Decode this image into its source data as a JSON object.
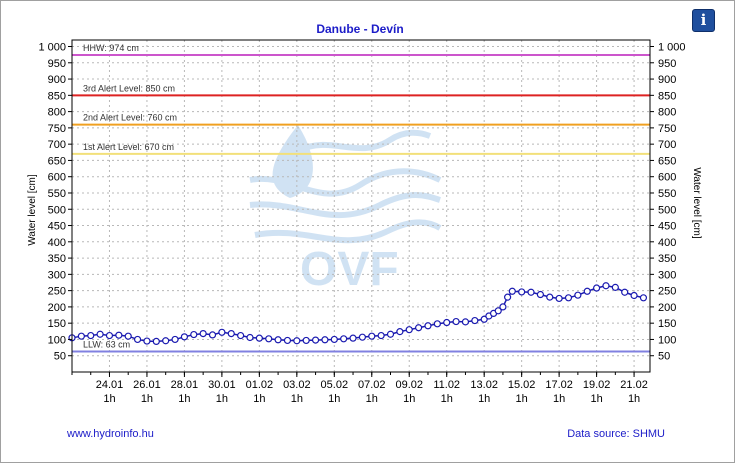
{
  "ui": {
    "info_icon": "info-icon",
    "info_glyph": "i",
    "footer_left": "www.hydroinfo.hu",
    "footer_right": "Data source: SHMU"
  },
  "chart_data": {
    "type": "line",
    "title": "Danube - Devín",
    "ylabel_left": "Water level [cm]",
    "ylabel_right": "Water level [cm]",
    "ylim": [
      0,
      1020
    ],
    "yticks": [
      50,
      100,
      150,
      200,
      250,
      300,
      350,
      400,
      450,
      500,
      550,
      600,
      650,
      700,
      750,
      800,
      850,
      900,
      950,
      1000
    ],
    "ytick_labels": [
      "50",
      "100",
      "150",
      "200",
      "250",
      "300",
      "350",
      "400",
      "450",
      "500",
      "550",
      "600",
      "650",
      "700",
      "750",
      "800",
      "850",
      "900",
      "950",
      "1 000"
    ],
    "xlim": [
      22.0,
      21.0
    ],
    "x_ticks": [
      {
        "date": "24.01",
        "hour": "1h"
      },
      {
        "date": "26.01",
        "hour": "1h"
      },
      {
        "date": "28.01",
        "hour": "1h"
      },
      {
        "date": "30.01",
        "hour": "1h"
      },
      {
        "date": "01.02",
        "hour": "1h"
      },
      {
        "date": "03.02",
        "hour": "1h"
      },
      {
        "date": "05.02",
        "hour": "1h"
      },
      {
        "date": "07.02",
        "hour": "1h"
      },
      {
        "date": "09.02",
        "hour": "1h"
      },
      {
        "date": "11.02",
        "hour": "1h"
      },
      {
        "date": "13.02",
        "hour": "1h"
      },
      {
        "date": "15.02",
        "hour": "1h"
      },
      {
        "date": "17.02",
        "hour": "1h"
      },
      {
        "date": "19.02",
        "hour": "1h"
      },
      {
        "date": "21.02",
        "hour": "1h"
      }
    ],
    "thresholds": [
      {
        "label": "HHW: 974 cm",
        "value": 974,
        "color": "#cc55cc"
      },
      {
        "label": "3rd Alert Level: 850 cm",
        "value": 850,
        "color": "#dd2222"
      },
      {
        "label": "2nd Alert Level: 760 cm",
        "value": 760,
        "color": "#f0a020"
      },
      {
        "label": "1st Alert Level: 670 cm",
        "value": 670,
        "color": "#f2e07a"
      },
      {
        "label": "LLW: 63 cm",
        "value": 63,
        "color": "#8080e0"
      }
    ],
    "series": [
      {
        "color": "#1a1ab0",
        "marker_color": "#ffffff",
        "points": [
          [
            "22.01",
            105
          ],
          [
            "22.01 12h",
            110
          ],
          [
            "23.01",
            112
          ],
          [
            "23.01 12h",
            116
          ],
          [
            "24.01",
            112
          ],
          [
            "24.01 12h",
            113
          ],
          [
            "25.01",
            110
          ],
          [
            "25.01 12h",
            100
          ],
          [
            "26.01",
            95
          ],
          [
            "26.01 12h",
            94
          ],
          [
            "27.01",
            96
          ],
          [
            "27.01 12h",
            100
          ],
          [
            "28.01",
            108
          ],
          [
            "28.01 12h",
            115
          ],
          [
            "29.01",
            118
          ],
          [
            "29.01 12h",
            114
          ],
          [
            "30.01",
            122
          ],
          [
            "30.01 12h",
            118
          ],
          [
            "31.01",
            112
          ],
          [
            "31.01 12h",
            106
          ],
          [
            "01.02",
            104
          ],
          [
            "01.02 12h",
            102
          ],
          [
            "02.02",
            99
          ],
          [
            "02.02 12h",
            97
          ],
          [
            "03.02",
            96
          ],
          [
            "03.02 12h",
            97
          ],
          [
            "04.02",
            98
          ],
          [
            "04.02 12h",
            99
          ],
          [
            "05.02",
            100
          ],
          [
            "05.02 12h",
            102
          ],
          [
            "06.02",
            104
          ],
          [
            "06.02 12h",
            107
          ],
          [
            "07.02",
            110
          ],
          [
            "07.02 12h",
            112
          ],
          [
            "08.02",
            116
          ],
          [
            "08.02 12h",
            124
          ],
          [
            "09.02",
            130
          ],
          [
            "09.02 12h",
            136
          ],
          [
            "10.02",
            142
          ],
          [
            "10.02 12h",
            148
          ],
          [
            "11.02",
            152
          ],
          [
            "11.02 12h",
            155
          ],
          [
            "12.02",
            154
          ],
          [
            "12.02 12h",
            158
          ],
          [
            "13.02",
            162
          ],
          [
            "13.02 6h",
            172
          ],
          [
            "13.02 12h",
            180
          ],
          [
            "13.02 18h",
            188
          ],
          [
            "14.02",
            200
          ],
          [
            "14.02 6h",
            230
          ],
          [
            "14.02 12h",
            248
          ],
          [
            "15.02",
            246
          ],
          [
            "15.02 12h",
            245
          ],
          [
            "16.02",
            238
          ],
          [
            "16.02 12h",
            230
          ],
          [
            "17.02",
            226
          ],
          [
            "17.02 12h",
            228
          ],
          [
            "18.02",
            236
          ],
          [
            "18.02 12h",
            248
          ],
          [
            "19.02",
            258
          ],
          [
            "19.02 12h",
            265
          ],
          [
            "20.02",
            260
          ],
          [
            "20.02 12h",
            245
          ],
          [
            "21.02",
            235
          ],
          [
            "21.02 12h",
            228
          ]
        ]
      }
    ]
  }
}
